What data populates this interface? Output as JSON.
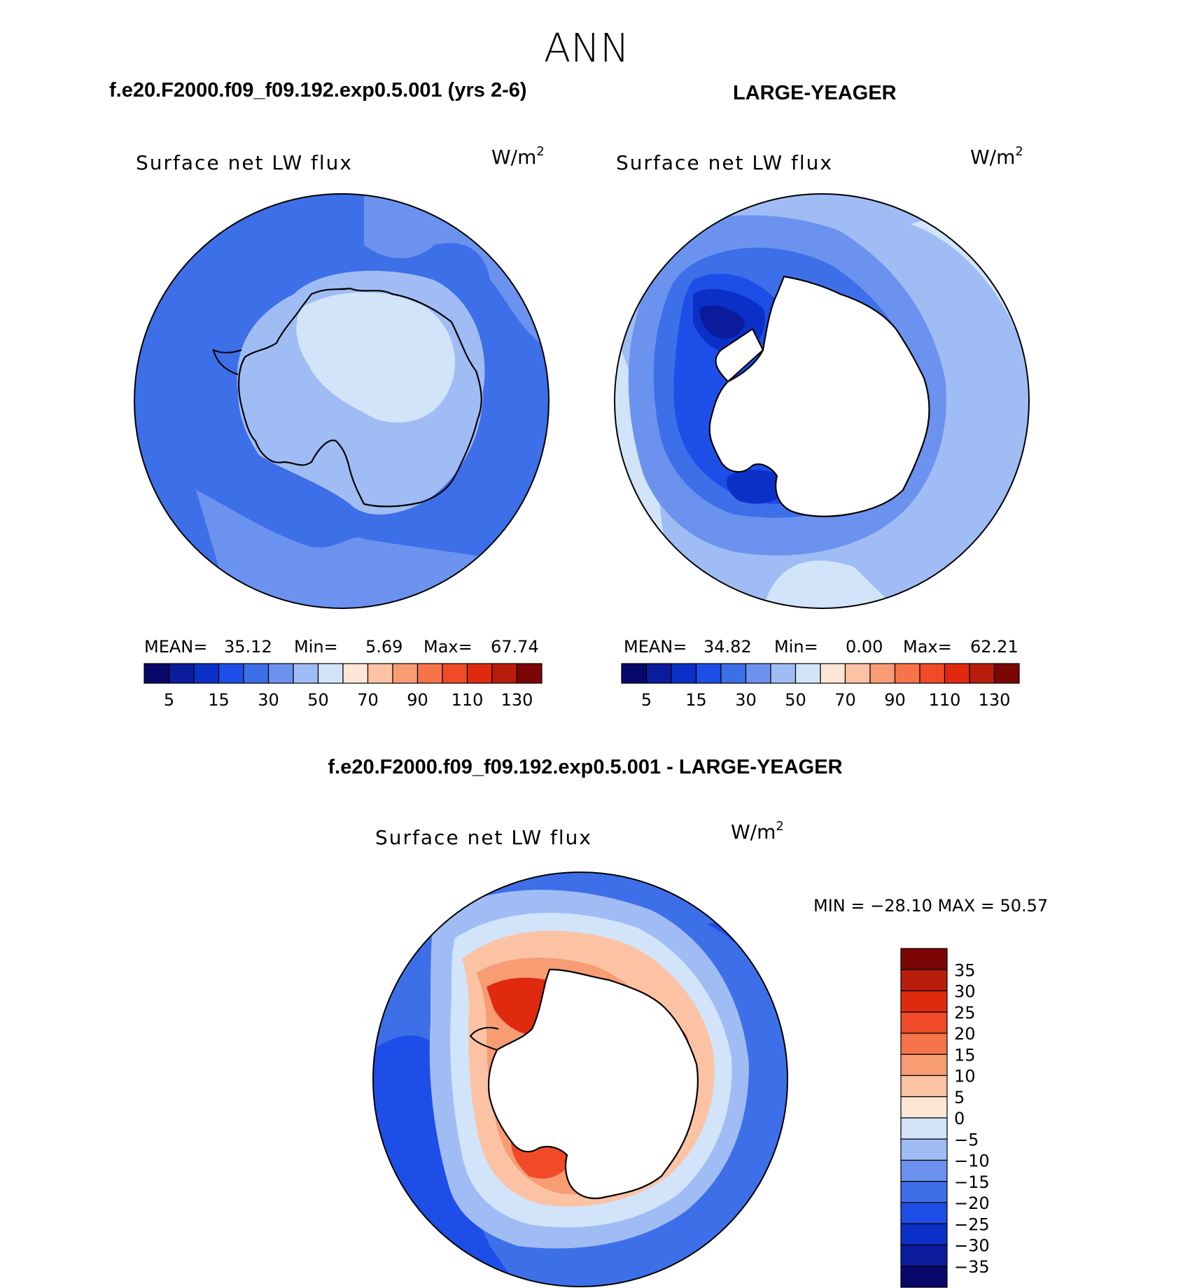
{
  "page_title": "ANN",
  "panels": {
    "model": {
      "header": "f.e20.F2000.f09_f09.192.exp0.5.001 (yrs 2-6)",
      "label": "Surface net LW flux",
      "units": "W/m",
      "units_sup": "2",
      "stats": {
        "mean_label": "MEAN=",
        "mean": "35.12",
        "min_label": "Min=",
        "min": "5.69",
        "max_label": "Max=",
        "max": "67.74"
      }
    },
    "obs": {
      "header": "LARGE-YEAGER",
      "label": "Surface net LW flux",
      "units": "W/m",
      "units_sup": "2",
      "stats": {
        "mean_label": "MEAN=",
        "mean": "34.82",
        "min_label": "Min=",
        "min": "0.00",
        "max_label": "Max=",
        "max": "62.21"
      }
    },
    "diff": {
      "header": "f.e20.F2000.f09_f09.192.exp0.5.001 - LARGE-YEAGER",
      "label": "Surface net LW flux",
      "units": "W/m",
      "units_sup": "2",
      "minmax": "MIN = −28.10 MAX =   50.57"
    }
  },
  "chart_data": [
    {
      "type": "heatmap",
      "projection": "south polar stereographic",
      "title": "f.e20.F2000.f09_f09.192.exp0.5.001 (yrs 2-6)",
      "variable": "Surface net LW flux",
      "units": "W/m2",
      "mean": 35.12,
      "min": 5.69,
      "max": 67.74,
      "colorbar_ticks": [
        "5",
        "15",
        "30",
        "50",
        "70",
        "90",
        "110",
        "130"
      ],
      "colorbar_ticks_at_boundary": [
        1,
        3,
        5,
        7,
        9,
        11,
        13,
        15
      ],
      "levels_count": 16
    },
    {
      "type": "heatmap",
      "projection": "south polar stereographic",
      "title": "LARGE-YEAGER",
      "variable": "Surface net LW flux",
      "units": "W/m2",
      "mean": 34.82,
      "min": 0.0,
      "max": 62.21,
      "colorbar_ticks": [
        "5",
        "15",
        "30",
        "50",
        "70",
        "90",
        "110",
        "130"
      ],
      "colorbar_ticks_at_boundary": [
        1,
        3,
        5,
        7,
        9,
        11,
        13,
        15
      ],
      "levels_count": 16
    },
    {
      "type": "heatmap",
      "projection": "south polar stereographic",
      "title": "f.e20.F2000.f09_f09.192.exp0.5.001 - LARGE-YEAGER",
      "variable": "Surface net LW flux",
      "units": "W/m2",
      "min": -28.1,
      "max": 50.57,
      "colorbar_ticks": [
        "35",
        "30",
        "25",
        "20",
        "15",
        "10",
        "5",
        "0",
        "−5",
        "−10",
        "−15",
        "−20",
        "−25",
        "−30",
        "−35"
      ],
      "levels_count": 16
    }
  ],
  "colors": {
    "abs_scale": [
      "#08086b",
      "#0a1c9c",
      "#0b30c8",
      "#1e4ee8",
      "#3d6fe8",
      "#6b92ee",
      "#a0bcf4",
      "#d2e4fa",
      "#fde6d6",
      "#fbc3a4",
      "#f89c74",
      "#f5744a",
      "#f04a28",
      "#e02a10",
      "#b81c0a",
      "#7c0505"
    ],
    "diff_scale": [
      "#7c0505",
      "#b81c0a",
      "#e02a10",
      "#f04a28",
      "#f5744a",
      "#f89c74",
      "#fbc3a4",
      "#fde6d6",
      "#d2e4fa",
      "#a0bcf4",
      "#6b92ee",
      "#3d6fe8",
      "#1e4ee8",
      "#0b30c8",
      "#0a1c9c",
      "#08086b"
    ]
  }
}
